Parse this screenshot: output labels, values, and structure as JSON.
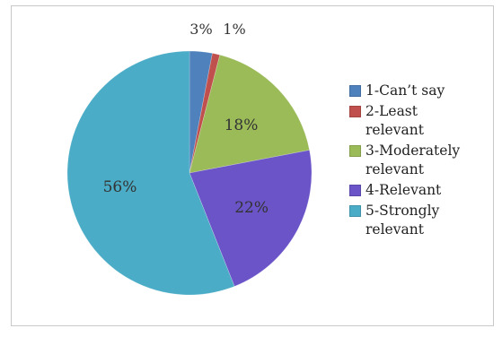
{
  "chart_data": {
    "type": "pie",
    "title": "",
    "categories": [
      "1-Can't say",
      "2-Least relevant",
      "3-Moderately relevant",
      "4-Relevant",
      "5-Strongly relevant"
    ],
    "values": [
      3,
      1,
      18,
      22,
      56
    ],
    "value_labels": [
      "3%",
      "1%",
      "18%",
      "22%",
      "56%"
    ],
    "colors": [
      "#4f81bd",
      "#c0504d",
      "#9bbb59",
      "#6a54c8",
      "#4aacc6"
    ],
    "legend_position": "right",
    "legend": [
      {
        "label": "1-Can’t say",
        "color": "#4f81bd"
      },
      {
        "label": "2-Least\nrelevant",
        "color": "#c0504d"
      },
      {
        "label": "3-Moderately\nrelevant",
        "color": "#9bbb59"
      },
      {
        "label": "4-Relevant",
        "color": "#6a54c8"
      },
      {
        "label": "5-Strongly\nrelevant",
        "color": "#4aacc6"
      }
    ]
  }
}
